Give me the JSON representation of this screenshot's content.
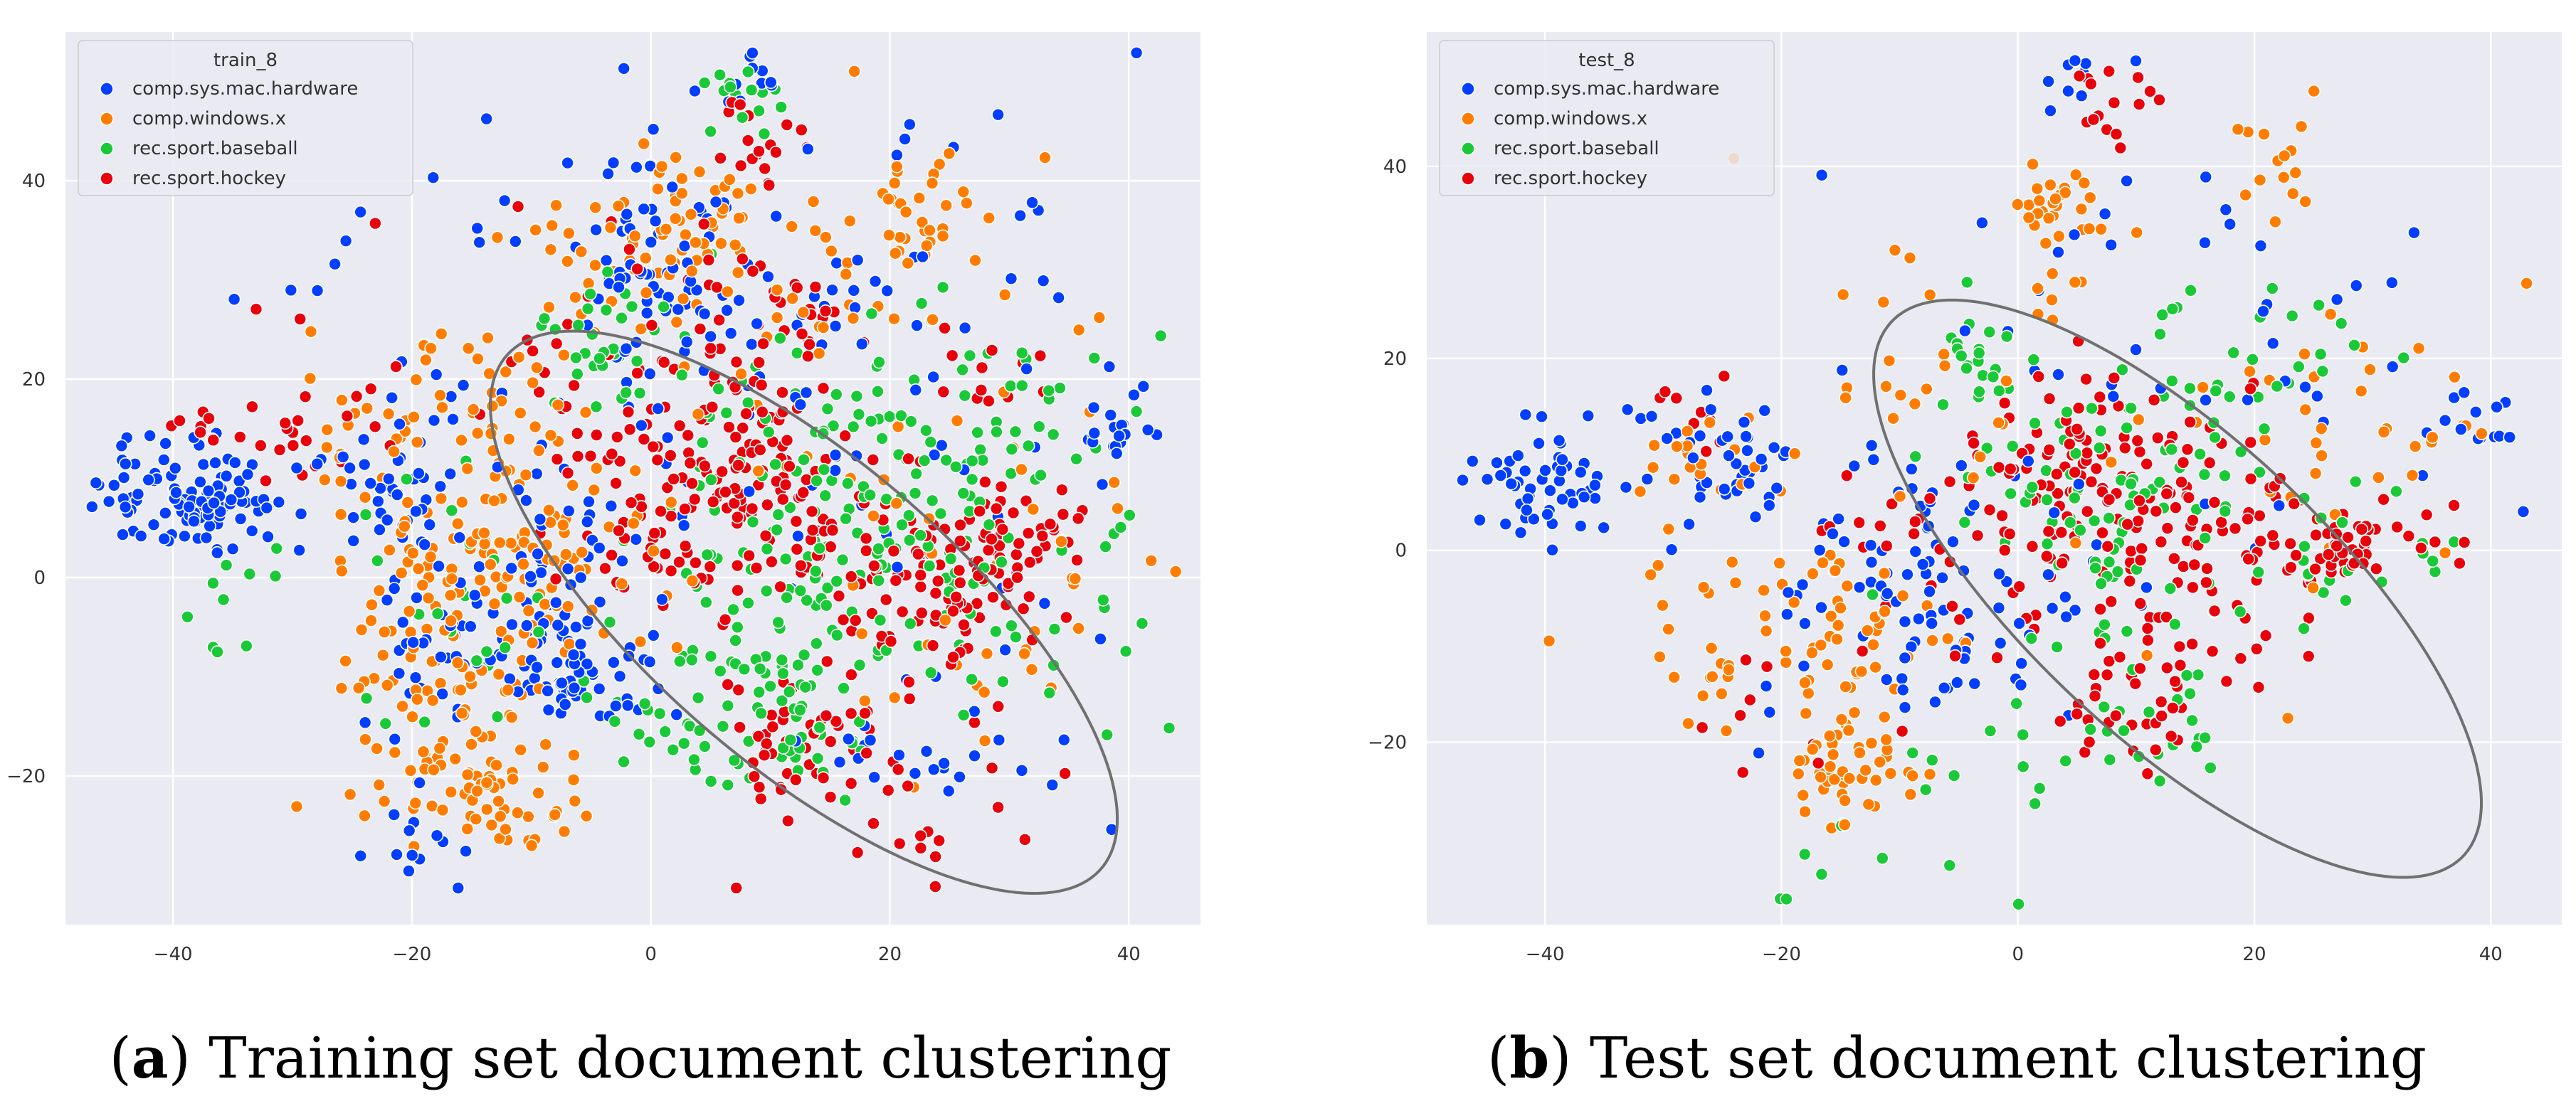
{
  "figure": {
    "captions": [
      {
        "letter": "a",
        "text": "Training set document clustering"
      },
      {
        "letter": "b",
        "text": "Test set document clustering"
      }
    ]
  },
  "chart_data": [
    {
      "type": "scatter",
      "title": "",
      "legend_title": "train_8",
      "legend_position": "top-left",
      "xlim": [
        -49,
        46
      ],
      "ylim": [
        -35,
        55
      ],
      "xticks": [
        -40,
        -20,
        0,
        20,
        40
      ],
      "yticks": [
        -20,
        0,
        20,
        40
      ],
      "grid": true,
      "series": [
        {
          "name": "comp.sys.mac.hardware",
          "color": "#023eff"
        },
        {
          "name": "comp.windows.x",
          "color": "#ff7c00"
        },
        {
          "name": "rec.sport.baseball",
          "color": "#1ac938"
        },
        {
          "name": "rec.sport.hockey",
          "color": "#e8000b"
        }
      ],
      "clusters": {
        "comp.sys.mac.hardware": [
          [
            -39,
            8,
            4,
            3,
            90
          ],
          [
            -37,
            8,
            3,
            2.5,
            30
          ],
          [
            -22,
            11,
            3,
            4,
            40
          ],
          [
            -15,
            -5,
            5,
            7,
            60
          ],
          [
            -8,
            -8,
            4,
            4,
            30
          ],
          [
            0,
            34,
            3,
            3,
            30
          ],
          [
            2,
            28,
            3,
            2,
            20
          ],
          [
            8,
            50,
            2,
            2,
            12
          ],
          [
            39,
            14,
            2,
            2.5,
            22
          ],
          [
            20,
            -16,
            3,
            3,
            12
          ],
          [
            -20,
            -27,
            3,
            2,
            12
          ],
          [
            -5,
            -11,
            3,
            2,
            30
          ],
          [
            10,
            25,
            16,
            14,
            120
          ],
          [
            -8,
            5,
            6,
            8,
            30
          ],
          [
            30,
            -14,
            10,
            10,
            20
          ]
        ],
        "comp.windows.x": [
          [
            -11,
            0,
            5,
            6,
            80
          ],
          [
            -15,
            -22,
            3,
            2,
            30
          ],
          [
            -20,
            -8,
            4,
            5,
            45
          ],
          [
            -15,
            18,
            3,
            4,
            30
          ],
          [
            3,
            35,
            3,
            3,
            40
          ],
          [
            22,
            38,
            2,
            3,
            25
          ],
          [
            -18,
            -15,
            5,
            5,
            40
          ],
          [
            -10,
            -25,
            3,
            2,
            15
          ],
          [
            -25,
            15,
            3,
            4,
            20
          ],
          [
            25,
            5,
            12,
            12,
            60
          ],
          [
            10,
            30,
            14,
            10,
            60
          ],
          [
            -7,
            28,
            5,
            4,
            20
          ],
          [
            -14,
            6,
            5,
            4,
            30
          ]
        ],
        "rec.sport.baseball": [
          [
            -4,
            24,
            2.5,
            3,
            30
          ],
          [
            8,
            48,
            2,
            2,
            15
          ],
          [
            12,
            -15,
            3,
            3,
            35
          ],
          [
            15,
            5,
            9,
            10,
            180
          ],
          [
            28,
            15,
            6,
            8,
            40
          ],
          [
            35,
            0,
            5,
            8,
            20
          ],
          [
            -15,
            -5,
            8,
            8,
            30
          ],
          [
            2,
            -15,
            4,
            3,
            20
          ],
          [
            -36,
            -2,
            3,
            4,
            10
          ]
        ],
        "rec.sport.hockey": [
          [
            8,
            10,
            5,
            6,
            130
          ],
          [
            24,
            0,
            4,
            4,
            90
          ],
          [
            31,
            5,
            3,
            3,
            45
          ],
          [
            13,
            -15,
            4,
            4,
            50
          ],
          [
            9,
            45,
            2,
            3,
            20
          ],
          [
            1,
            3,
            4,
            3,
            30
          ],
          [
            -5,
            15,
            3,
            3,
            15
          ],
          [
            12,
            28,
            2.5,
            2.5,
            15
          ],
          [
            -28,
            13,
            3,
            4,
            20
          ],
          [
            -38,
            15,
            1.5,
            1.5,
            8
          ],
          [
            20,
            -25,
            8,
            5,
            20
          ],
          [
            5,
            25,
            8,
            6,
            30
          ],
          [
            -10,
            25,
            10,
            8,
            15
          ],
          [
            28,
            22,
            2,
            2,
            10
          ]
        ]
      },
      "ellipse": {
        "cx": 12.8,
        "cy": -3.5,
        "rx": 36,
        "ry": 14,
        "angle_deg": -48,
        "color": "#707070"
      }
    },
    {
      "type": "scatter",
      "title": "",
      "legend_title": "test_8",
      "legend_position": "top-left",
      "xlim": [
        -50,
        46
      ],
      "ylim": [
        -39,
        54
      ],
      "xticks": [
        -40,
        -20,
        0,
        20,
        40
      ],
      "yticks": [
        -20,
        0,
        20,
        40
      ],
      "grid": true,
      "series": [
        {
          "name": "comp.sys.mac.hardware",
          "color": "#023eff"
        },
        {
          "name": "comp.windows.x",
          "color": "#ff7c00"
        },
        {
          "name": "rec.sport.baseball",
          "color": "#1ac938"
        },
        {
          "name": "rec.sport.hockey",
          "color": "#e8000b"
        }
      ],
      "clusters": {
        "comp.sys.mac.hardware": [
          [
            -40,
            7,
            3,
            3,
            55
          ],
          [
            -25,
            10,
            3,
            3,
            35
          ],
          [
            -10,
            0,
            5,
            6,
            40
          ],
          [
            -5,
            -10,
            4,
            4,
            30
          ],
          [
            6,
            50,
            2,
            2,
            10
          ],
          [
            38,
            13,
            2,
            2,
            15
          ],
          [
            10,
            20,
            15,
            12,
            60
          ],
          [
            -20,
            -5,
            6,
            8,
            20
          ]
        ],
        "comp.windows.x": [
          [
            -14,
            -22,
            3,
            3,
            50
          ],
          [
            -15,
            -8,
            5,
            4,
            50
          ],
          [
            3,
            35,
            2,
            3,
            30
          ],
          [
            22,
            40,
            2,
            3,
            15
          ],
          [
            -26,
            10,
            3,
            3,
            20
          ],
          [
            25,
            10,
            10,
            10,
            40
          ],
          [
            -5,
            20,
            10,
            8,
            30
          ],
          [
            -28,
            -10,
            4,
            6,
            20
          ]
        ],
        "rec.sport.baseball": [
          [
            -3,
            20,
            2,
            2,
            20
          ],
          [
            10,
            8,
            8,
            9,
            100
          ],
          [
            12,
            -18,
            3,
            3,
            20
          ],
          [
            22,
            20,
            5,
            5,
            20
          ],
          [
            30,
            0,
            4,
            4,
            15
          ],
          [
            0,
            -25,
            5,
            5,
            15
          ],
          [
            -15,
            -30,
            4,
            4,
            10
          ]
        ],
        "rec.sport.hockey": [
          [
            5,
            8,
            5,
            6,
            80
          ],
          [
            12,
            5,
            6,
            6,
            60
          ],
          [
            28,
            1,
            4,
            3,
            50
          ],
          [
            10,
            -15,
            4,
            4,
            40
          ],
          [
            7,
            47,
            2,
            2,
            15
          ],
          [
            0,
            -5,
            4,
            4,
            20
          ],
          [
            -10,
            5,
            5,
            4,
            15
          ],
          [
            -27,
            15,
            2,
            2,
            10
          ],
          [
            20,
            -5,
            5,
            5,
            30
          ],
          [
            -20,
            -15,
            5,
            5,
            10
          ]
        ]
      },
      "ellipse": {
        "cx": 13.5,
        "cy": -4,
        "rx": 37,
        "ry": 14,
        "angle_deg": -51,
        "color": "#707070"
      }
    }
  ]
}
